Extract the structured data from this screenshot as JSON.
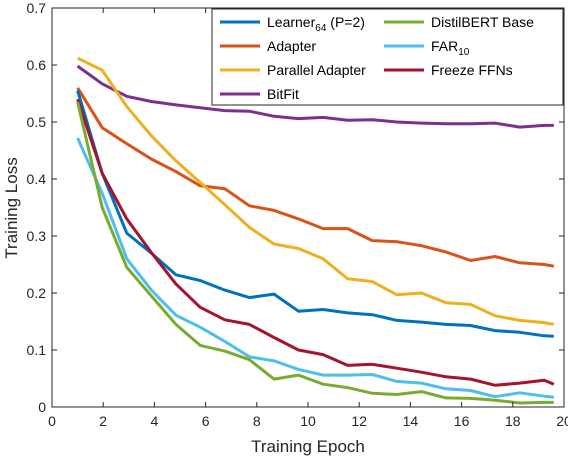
{
  "chart_data": {
    "type": "line",
    "title": "",
    "xlabel": "Training Epoch",
    "ylabel": "Training Loss",
    "xlim": [
      0,
      20
    ],
    "ylim": [
      0,
      0.7
    ],
    "xticks": [
      0,
      2,
      4,
      6,
      8,
      10,
      12,
      14,
      16,
      18,
      20
    ],
    "yticks": [
      0,
      0.1,
      0.2,
      0.3,
      0.4,
      0.5,
      0.6,
      0.7
    ],
    "xtick_labels": [
      "0",
      "2",
      "4",
      "6",
      "8",
      "10",
      "12",
      "14",
      "16",
      "18",
      "20"
    ],
    "ytick_labels": [
      "0",
      "0.1",
      "0.2",
      "0.3",
      "0.4",
      "0.5",
      "0.6",
      "0.7"
    ],
    "grid": false,
    "legend_position": "top-right",
    "x": [
      1.0,
      1.96,
      2.92,
      3.88,
      4.84,
      5.79,
      6.75,
      7.71,
      8.67,
      9.63,
      10.59,
      11.55,
      12.51,
      13.47,
      14.43,
      15.39,
      16.35,
      17.31,
      18.27,
      19.23,
      19.6
    ],
    "series": [
      {
        "name": "Learner",
        "name_sub": "64",
        "name_suffix": " (P=2)",
        "color": "#0072BD",
        "values": [
          0.555,
          0.41,
          0.305,
          0.27,
          0.232,
          0.222,
          0.205,
          0.192,
          0.198,
          0.168,
          0.171,
          0.165,
          0.162,
          0.152,
          0.149,
          0.145,
          0.143,
          0.134,
          0.131,
          0.125,
          0.124
        ]
      },
      {
        "name": "Adapter",
        "color": "#D95319",
        "values": [
          0.56,
          0.49,
          0.462,
          0.435,
          0.413,
          0.388,
          0.383,
          0.353,
          0.345,
          0.33,
          0.313,
          0.313,
          0.292,
          0.29,
          0.283,
          0.272,
          0.257,
          0.264,
          0.253,
          0.25,
          0.247
        ]
      },
      {
        "name": "Parallel Adapter",
        "color": "#EDB120",
        "values": [
          0.612,
          0.591,
          0.527,
          0.476,
          0.432,
          0.394,
          0.355,
          0.315,
          0.286,
          0.278,
          0.26,
          0.225,
          0.22,
          0.197,
          0.2,
          0.183,
          0.18,
          0.16,
          0.152,
          0.148,
          0.145
        ]
      },
      {
        "name": "BitFit",
        "color": "#7E2F8E",
        "values": [
          0.598,
          0.567,
          0.545,
          0.536,
          0.53,
          0.525,
          0.52,
          0.519,
          0.51,
          0.506,
          0.508,
          0.503,
          0.504,
          0.5,
          0.498,
          0.497,
          0.497,
          0.498,
          0.491,
          0.494,
          0.494
        ]
      },
      {
        "name": "DistilBERT Base",
        "color": "#77AC30",
        "values": [
          0.535,
          0.35,
          0.245,
          0.195,
          0.145,
          0.108,
          0.098,
          0.083,
          0.049,
          0.056,
          0.04,
          0.034,
          0.024,
          0.022,
          0.027,
          0.016,
          0.015,
          0.012,
          0.007,
          0.008,
          0.008
        ]
      },
      {
        "name": "FAR",
        "name_sub": "10",
        "name_suffix": "",
        "color": "#4DBEEE",
        "values": [
          0.472,
          0.375,
          0.26,
          0.205,
          0.161,
          0.14,
          0.115,
          0.088,
          0.081,
          0.066,
          0.056,
          0.056,
          0.057,
          0.045,
          0.042,
          0.032,
          0.029,
          0.018,
          0.025,
          0.019,
          0.017
        ]
      },
      {
        "name": "Freeze FFNs",
        "color": "#A2142F",
        "values": [
          0.54,
          0.41,
          0.33,
          0.271,
          0.216,
          0.175,
          0.153,
          0.145,
          0.122,
          0.1,
          0.092,
          0.073,
          0.075,
          0.068,
          0.061,
          0.053,
          0.049,
          0.038,
          0.042,
          0.047,
          0.04
        ]
      }
    ]
  }
}
